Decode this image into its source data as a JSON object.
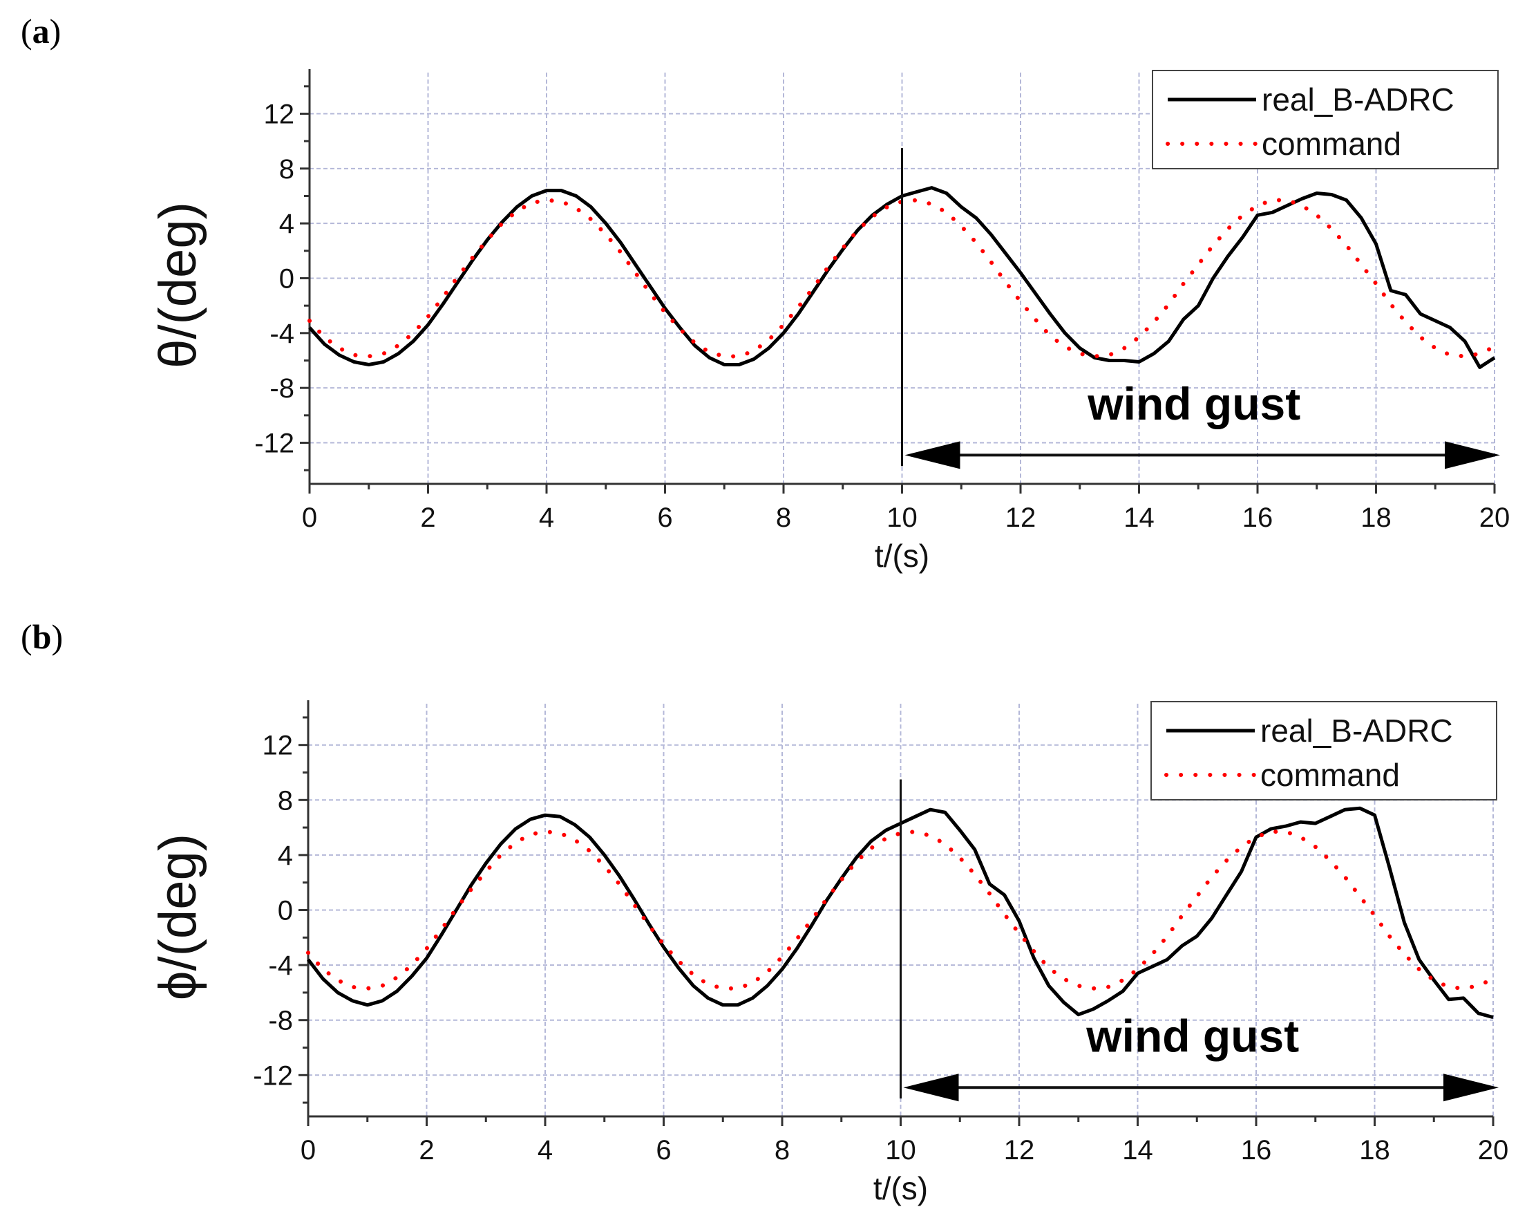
{
  "panels": [
    {
      "letter": "a",
      "chart_data": {
        "type": "line",
        "title": "",
        "xlabel": "t/(s)",
        "ylabel": "θ/(deg)",
        "xlim": [
          0,
          20
        ],
        "ylim": [
          -15,
          15
        ],
        "xticks": [
          0,
          2,
          4,
          6,
          8,
          10,
          12,
          14,
          16,
          18,
          20
        ],
        "yticks": [
          -12,
          -8,
          -4,
          0,
          4,
          8,
          12
        ],
        "grid": true,
        "legend_position": "top-right",
        "series": [
          {
            "name": "real_B-ADRC",
            "style": "solid",
            "color": "#000000",
            "x": [
              0,
              0.25,
              0.5,
              0.75,
              1.0,
              1.25,
              1.5,
              1.75,
              2.0,
              2.25,
              2.5,
              2.75,
              3.0,
              3.25,
              3.5,
              3.75,
              4.0,
              4.25,
              4.5,
              4.75,
              5.0,
              5.25,
              5.5,
              5.75,
              6.0,
              6.25,
              6.5,
              6.75,
              7.0,
              7.25,
              7.5,
              7.75,
              8.0,
              8.25,
              8.5,
              8.75,
              9.0,
              9.25,
              9.5,
              9.75,
              10.0,
              10.25,
              10.5,
              10.75,
              11.0,
              11.25,
              11.5,
              11.75,
              12.0,
              12.25,
              12.5,
              12.75,
              13.0,
              13.25,
              13.5,
              13.75,
              14.0,
              14.25,
              14.5,
              14.75,
              15.0,
              15.25,
              15.5,
              15.75,
              16.0,
              16.25,
              16.5,
              16.75,
              17.0,
              17.25,
              17.5,
              17.75,
              18.0,
              18.25,
              18.5,
              18.75,
              19.0,
              19.25,
              19.5,
              19.75,
              20.0
            ],
            "y": [
              -3.6,
              -4.8,
              -5.6,
              -6.1,
              -6.3,
              -6.1,
              -5.5,
              -4.6,
              -3.4,
              -1.9,
              -0.3,
              1.3,
              2.8,
              4.1,
              5.2,
              6.0,
              6.4,
              6.4,
              6.0,
              5.2,
              4.0,
              2.6,
              1.0,
              -0.6,
              -2.2,
              -3.6,
              -4.9,
              -5.8,
              -6.3,
              -6.3,
              -5.9,
              -5.1,
              -4.0,
              -2.6,
              -1.0,
              0.6,
              2.1,
              3.5,
              4.6,
              5.4,
              6.0,
              6.3,
              6.6,
              6.2,
              5.2,
              4.4,
              3.2,
              1.8,
              0.4,
              -1.1,
              -2.6,
              -4.0,
              -5.1,
              -5.8,
              -6.0,
              -6.0,
              -6.1,
              -5.5,
              -4.6,
              -3.0,
              -2.0,
              0.0,
              1.6,
              3.0,
              4.6,
              4.8,
              5.3,
              5.8,
              6.2,
              6.1,
              5.7,
              4.4,
              2.5,
              -0.9,
              -1.2,
              -2.6,
              -3.1,
              -3.6,
              -4.6,
              -6.5,
              -5.8
            ]
          },
          {
            "name": "command",
            "style": "dotted",
            "color": "#ff0000",
            "x": [
              0,
              0.25,
              0.5,
              0.75,
              1.0,
              1.25,
              1.5,
              1.75,
              2.0,
              2.25,
              2.5,
              2.75,
              3.0,
              3.25,
              3.5,
              3.75,
              4.0,
              4.25,
              4.5,
              4.75,
              5.0,
              5.25,
              5.5,
              5.75,
              6.0,
              6.25,
              6.5,
              6.75,
              7.0,
              7.25,
              7.5,
              7.75,
              8.0,
              8.25,
              8.5,
              8.75,
              9.0,
              9.25,
              9.5,
              9.75,
              10.0,
              10.25,
              10.5,
              10.75,
              11.0,
              11.25,
              11.5,
              11.75,
              12.0,
              12.25,
              12.5,
              12.75,
              13.0,
              13.25,
              13.5,
              13.75,
              14.0,
              14.25,
              14.5,
              14.75,
              15.0,
              15.25,
              15.5,
              15.75,
              16.0,
              16.25,
              16.5,
              16.75,
              17.0,
              17.25,
              17.5,
              17.75,
              18.0,
              18.25,
              18.5,
              18.75,
              19.0,
              19.25,
              19.5,
              19.75,
              20.0
            ],
            "y": [
              -3.1,
              -4.3,
              -5.1,
              -5.6,
              -5.7,
              -5.5,
              -4.9,
              -4.0,
              -2.8,
              -1.4,
              0.1,
              1.5,
              2.8,
              4.0,
              4.9,
              5.5,
              5.7,
              5.6,
              5.1,
              4.3,
              3.2,
              1.9,
              0.4,
              -1.1,
              -2.5,
              -3.7,
              -4.7,
              -5.4,
              -5.7,
              -5.7,
              -5.3,
              -4.5,
              -3.4,
              -2.1,
              -0.7,
              0.8,
              2.2,
              3.5,
              4.5,
              5.2,
              5.6,
              5.7,
              5.4,
              4.8,
              3.8,
              2.6,
              1.2,
              -0.3,
              -1.7,
              -3.0,
              -4.2,
              -5.0,
              -5.5,
              -5.7,
              -5.6,
              -5.1,
              -4.3,
              -3.2,
              -1.9,
              -0.4,
              1.0,
              2.4,
              3.6,
              4.6,
              5.3,
              5.7,
              5.7,
              5.3,
              4.6,
              3.6,
              2.4,
              1.0,
              -0.4,
              -1.9,
              -3.2,
              -4.3,
              -5.1,
              -5.6,
              -5.7,
              -5.5,
              -5.0
            ]
          }
        ],
        "annotations": [
          {
            "text": "wind gust",
            "arrow_from": 10,
            "arrow_to": 20,
            "marker_x": 10
          }
        ]
      }
    },
    {
      "letter": "b",
      "chart_data": {
        "type": "line",
        "title": "",
        "xlabel": "t/(s)",
        "ylabel": "ϕ/(deg)",
        "xlim": [
          0,
          20
        ],
        "ylim": [
          -15,
          15
        ],
        "xticks": [
          0,
          2,
          4,
          6,
          8,
          10,
          12,
          14,
          16,
          18,
          20
        ],
        "yticks": [
          -12,
          -8,
          -4,
          0,
          4,
          8,
          12
        ],
        "grid": true,
        "legend_position": "top-right",
        "series": [
          {
            "name": "real_B-ADRC",
            "style": "solid",
            "color": "#000000",
            "x": [
              0,
              0.25,
              0.5,
              0.75,
              1.0,
              1.25,
              1.5,
              1.75,
              2.0,
              2.25,
              2.5,
              2.75,
              3.0,
              3.25,
              3.5,
              3.75,
              4.0,
              4.25,
              4.5,
              4.75,
              5.0,
              5.25,
              5.5,
              5.75,
              6.0,
              6.25,
              6.5,
              6.75,
              7.0,
              7.25,
              7.5,
              7.75,
              8.0,
              8.25,
              8.5,
              8.75,
              9.0,
              9.25,
              9.5,
              9.75,
              10.0,
              10.25,
              10.5,
              10.75,
              11.0,
              11.25,
              11.5,
              11.75,
              12.0,
              12.25,
              12.5,
              12.75,
              13.0,
              13.25,
              13.5,
              13.75,
              14.0,
              14.25,
              14.5,
              14.75,
              15.0,
              15.25,
              15.5,
              15.75,
              16.0,
              16.25,
              16.5,
              16.75,
              17.0,
              17.25,
              17.5,
              17.75,
              18.0,
              18.25,
              18.5,
              18.75,
              19.0,
              19.25,
              19.5,
              19.75,
              20.0
            ],
            "y": [
              -3.6,
              -5.0,
              -6.0,
              -6.6,
              -6.9,
              -6.6,
              -5.9,
              -4.8,
              -3.5,
              -1.8,
              0.0,
              1.8,
              3.4,
              4.8,
              5.9,
              6.6,
              6.9,
              6.8,
              6.2,
              5.3,
              4.0,
              2.5,
              0.8,
              -1.0,
              -2.7,
              -4.2,
              -5.5,
              -6.4,
              -6.9,
              -6.9,
              -6.4,
              -5.5,
              -4.3,
              -2.8,
              -1.1,
              0.7,
              2.3,
              3.8,
              5.0,
              5.8,
              6.3,
              6.8,
              7.3,
              7.1,
              5.8,
              4.4,
              1.9,
              1.1,
              -0.8,
              -3.5,
              -5.5,
              -6.7,
              -7.6,
              -7.2,
              -6.6,
              -5.9,
              -4.6,
              -4.1,
              -3.6,
              -2.6,
              -1.9,
              -0.6,
              1.1,
              2.8,
              5.3,
              5.9,
              6.1,
              6.4,
              6.3,
              6.8,
              7.3,
              7.4,
              6.9,
              3.1,
              -0.9,
              -3.6,
              -5.1,
              -6.5,
              -6.4,
              -7.5,
              -7.8
            ]
          },
          {
            "name": "command",
            "style": "dotted",
            "color": "#ff0000",
            "x": [
              0,
              0.25,
              0.5,
              0.75,
              1.0,
              1.25,
              1.5,
              1.75,
              2.0,
              2.25,
              2.5,
              2.75,
              3.0,
              3.25,
              3.5,
              3.75,
              4.0,
              4.25,
              4.5,
              4.75,
              5.0,
              5.25,
              5.5,
              5.75,
              6.0,
              6.25,
              6.5,
              6.75,
              7.0,
              7.25,
              7.5,
              7.75,
              8.0,
              8.25,
              8.5,
              8.75,
              9.0,
              9.25,
              9.5,
              9.75,
              10.0,
              10.25,
              10.5,
              10.75,
              11.0,
              11.25,
              11.5,
              11.75,
              12.0,
              12.25,
              12.5,
              12.75,
              13.0,
              13.25,
              13.5,
              13.75,
              14.0,
              14.25,
              14.5,
              14.75,
              15.0,
              15.25,
              15.5,
              15.75,
              16.0,
              16.25,
              16.5,
              16.75,
              17.0,
              17.25,
              17.5,
              17.75,
              18.0,
              18.25,
              18.5,
              18.75,
              19.0,
              19.25,
              19.5,
              19.75,
              20.0
            ],
            "y": [
              -3.1,
              -4.3,
              -5.1,
              -5.6,
              -5.7,
              -5.5,
              -4.9,
              -4.0,
              -2.8,
              -1.4,
              0.1,
              1.5,
              2.8,
              4.0,
              4.9,
              5.5,
              5.7,
              5.6,
              5.1,
              4.3,
              3.2,
              1.9,
              0.4,
              -1.1,
              -2.5,
              -3.7,
              -4.7,
              -5.4,
              -5.7,
              -5.7,
              -5.3,
              -4.5,
              -3.4,
              -2.1,
              -0.7,
              0.8,
              2.2,
              3.5,
              4.5,
              5.2,
              5.6,
              5.7,
              5.4,
              4.8,
              3.8,
              2.6,
              1.2,
              -0.3,
              -1.7,
              -3.0,
              -4.2,
              -5.0,
              -5.5,
              -5.7,
              -5.6,
              -5.1,
              -4.3,
              -3.2,
              -1.9,
              -0.4,
              1.0,
              2.4,
              3.6,
              4.6,
              5.3,
              5.7,
              5.7,
              5.3,
              4.6,
              3.6,
              2.4,
              1.0,
              -0.4,
              -1.9,
              -3.2,
              -4.3,
              -5.1,
              -5.6,
              -5.7,
              -5.5,
              -5.0
            ]
          }
        ],
        "annotations": [
          {
            "text": "wind gust",
            "arrow_from": 10,
            "arrow_to": 20,
            "marker_x": 10
          }
        ]
      }
    }
  ]
}
